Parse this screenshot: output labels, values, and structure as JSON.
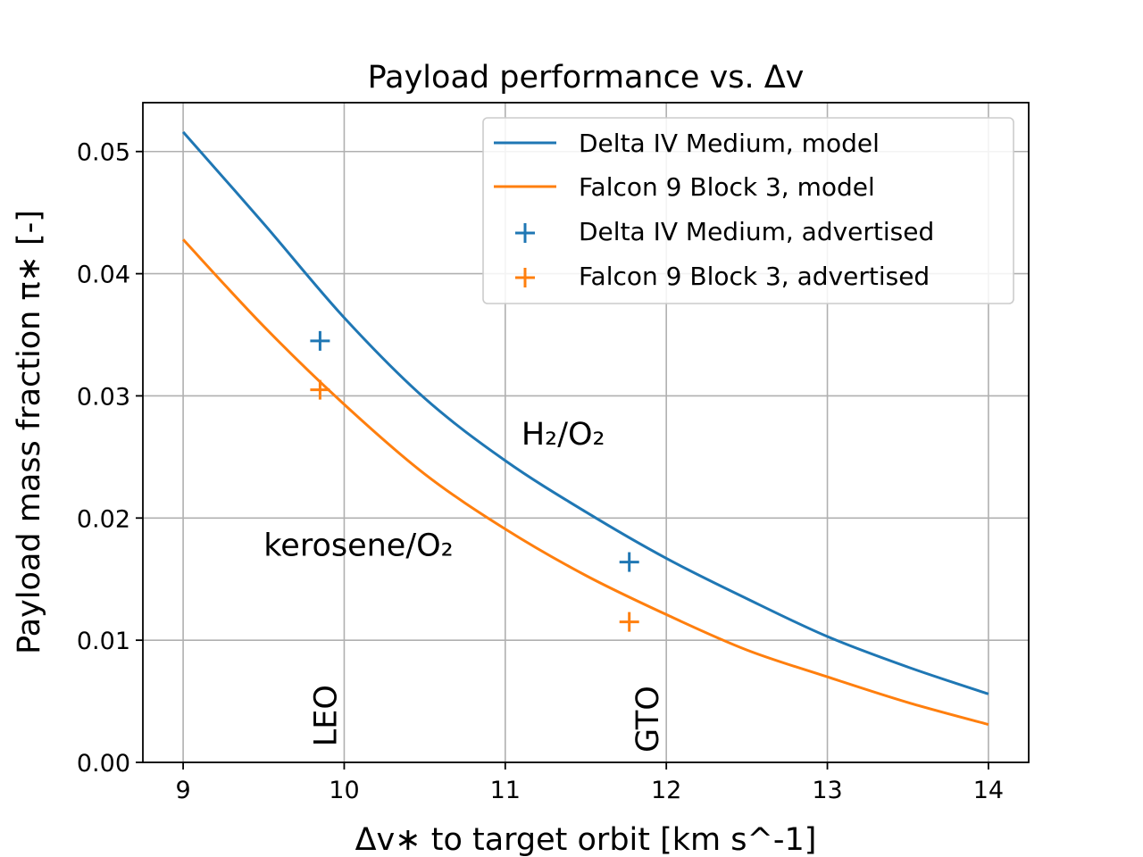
{
  "chart_data": {
    "type": "line",
    "title": "Payload performance vs. Δv",
    "xlabel": "Δv∗ to target orbit [km s^-1]",
    "ylabel": "Payload mass fraction π∗ [-]",
    "xlim": [
      8.75,
      14.25
    ],
    "ylim": [
      0.0,
      0.054
    ],
    "xticks": [
      9,
      10,
      11,
      12,
      13,
      14
    ],
    "xtick_labels": [
      "9",
      "10",
      "11",
      "12",
      "13",
      "14"
    ],
    "yticks": [
      0.0,
      0.01,
      0.02,
      0.03,
      0.04,
      0.05
    ],
    "ytick_labels": [
      "0.00",
      "0.01",
      "0.02",
      "0.03",
      "0.04",
      "0.05"
    ],
    "grid": true,
    "legend_position": "top-right",
    "series": [
      {
        "name": "Delta IV Medium, model",
        "kind": "line",
        "color": "#1f77b4",
        "x": [
          9.0,
          9.5,
          10.0,
          10.5,
          11.0,
          11.5,
          12.0,
          12.5,
          13.0,
          13.5,
          14.0
        ],
        "y": [
          0.0516,
          0.0441,
          0.0364,
          0.0298,
          0.0247,
          0.0205,
          0.0167,
          0.0134,
          0.0103,
          0.0078,
          0.0056
        ]
      },
      {
        "name": "Falcon 9 Block 3, model",
        "kind": "line",
        "color": "#ff7f0e",
        "x": [
          9.0,
          9.5,
          10.0,
          10.5,
          11.0,
          11.5,
          12.0,
          12.5,
          13.0,
          13.5,
          14.0
        ],
        "y": [
          0.0428,
          0.0357,
          0.0293,
          0.0236,
          0.0191,
          0.0153,
          0.0121,
          0.0092,
          0.007,
          0.0049,
          0.0031
        ]
      },
      {
        "name": "Delta IV Medium, advertised",
        "kind": "scatter",
        "marker": "+",
        "color": "#1f77b4",
        "x": [
          9.85,
          11.77
        ],
        "y": [
          0.0345,
          0.0164
        ]
      },
      {
        "name": "Falcon 9 Block 3, advertised",
        "kind": "scatter",
        "marker": "+",
        "color": "#ff7f0e",
        "x": [
          9.85,
          11.77
        ],
        "y": [
          0.0305,
          0.0115
        ]
      }
    ],
    "annotations": [
      {
        "text": "H₂/O₂",
        "x": 11.1,
        "y": 0.026,
        "color": "#1f77b4",
        "rotation": 0
      },
      {
        "text": "kerosene/O₂",
        "x": 9.5,
        "y": 0.0169,
        "color": "#ff7f0e",
        "rotation": 0
      },
      {
        "text": "LEO",
        "x": 9.95,
        "y": 0.0013,
        "color": "#000000",
        "rotation": -90
      },
      {
        "text": "GTO",
        "x": 11.95,
        "y": 0.0008,
        "color": "#000000",
        "rotation": -90
      }
    ]
  }
}
